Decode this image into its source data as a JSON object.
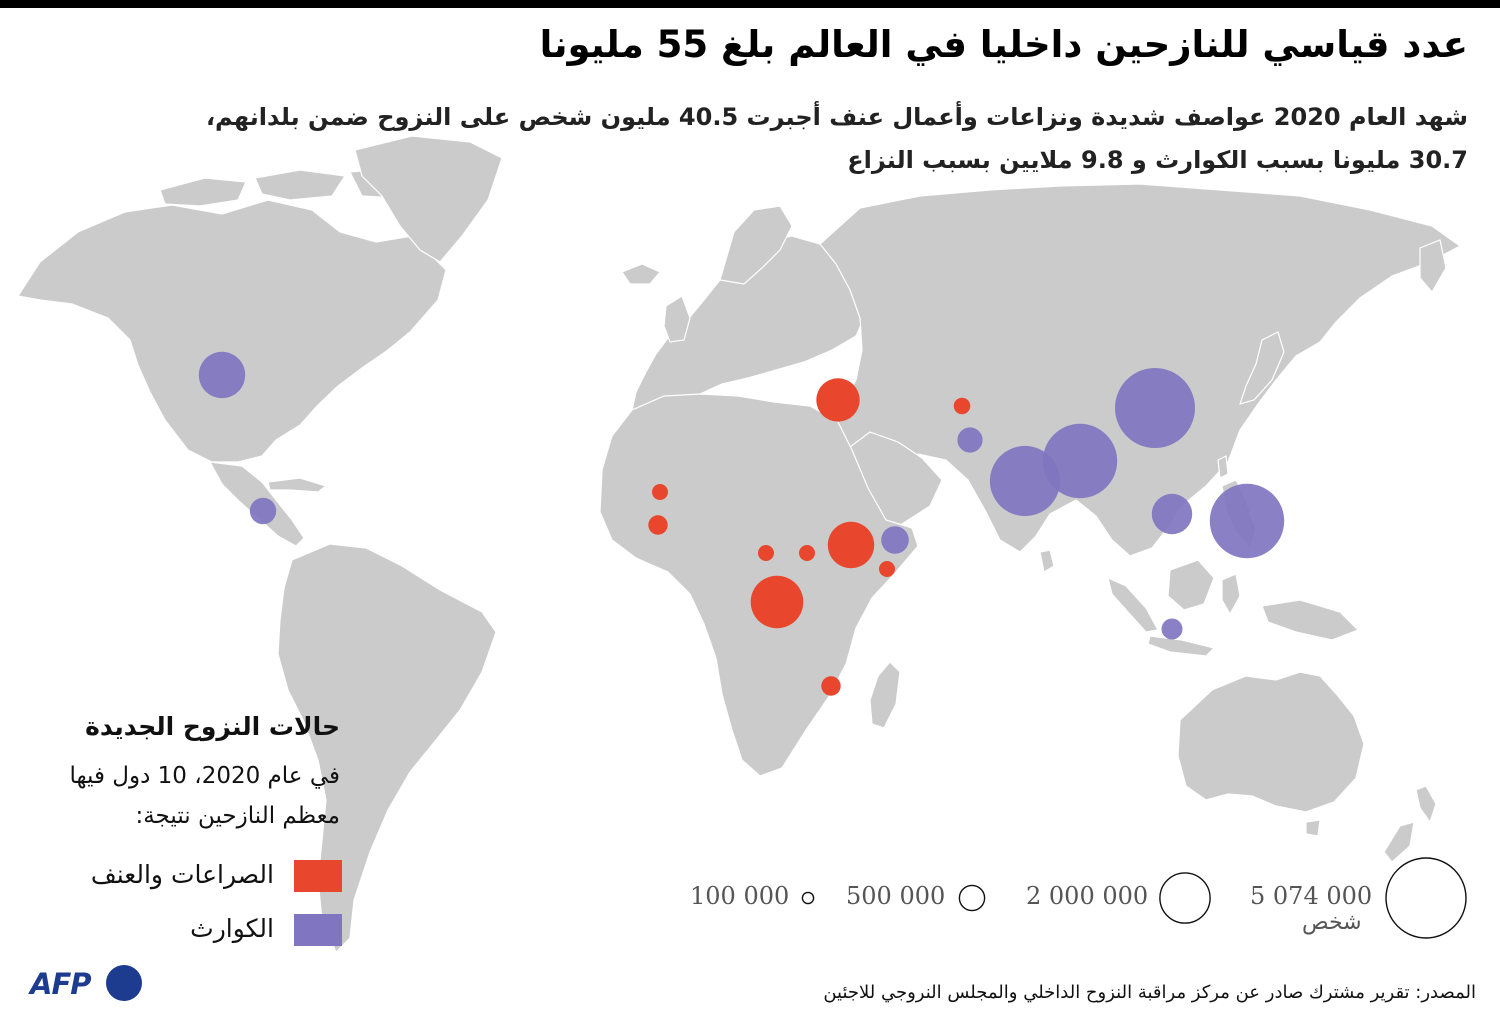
{
  "header": {
    "title": "عدد قياسي للنازحين داخليا في العالم بلغ 55 مليونا",
    "subtitle_line1": "شهد العام 2020 عواصف شديدة ونزاعات وأعمال عنف أجبرت 40.5 مليون شخص على النزوح ضمن بلدانهم،",
    "subtitle_line2": "30.7 مليونا بسبب الكوارث و 9.8 ملايين بسبب النزاع"
  },
  "colors": {
    "conflict": "#e8462d",
    "disasters": "#8075c0",
    "land": "#cbcbcb",
    "border": "#ffffff"
  },
  "legend": {
    "title": "حالات النزوح الجديدة",
    "desc_line1": "في عام 2020، 10 دول فيها",
    "desc_line2": "معظم النازحين نتيجة:",
    "conflict_label": "الصراعات والعنف",
    "disasters_label": "الكوارث"
  },
  "size_legend": {
    "items": [
      {
        "label": "100 000",
        "value": 100000
      },
      {
        "label": "500 000",
        "value": 500000
      },
      {
        "label": "2 000 000",
        "value": 2000000
      },
      {
        "label": "5 074 000",
        "value": 5074000
      }
    ],
    "unit": "شخص"
  },
  "bubbles": [
    {
      "region": "usa",
      "type": "disasters",
      "value": 1700000
    },
    {
      "region": "central-america",
      "type": "disasters",
      "value": 550000
    },
    {
      "region": "syria",
      "type": "conflict",
      "value": 1500000
    },
    {
      "region": "afghanistan",
      "type": "conflict",
      "value": 220000
    },
    {
      "region": "pakistan",
      "type": "disasters",
      "value": 500000
    },
    {
      "region": "india",
      "type": "disasters",
      "value": 3900000
    },
    {
      "region": "bangladesh",
      "type": "disasters",
      "value": 4400000
    },
    {
      "region": "china",
      "type": "disasters",
      "value": 5074000
    },
    {
      "region": "vietnam",
      "type": "disasters",
      "value": 1300000
    },
    {
      "region": "philippines",
      "type": "disasters",
      "value": 4400000
    },
    {
      "region": "indonesia",
      "type": "disasters",
      "value": 350000
    },
    {
      "region": "mali",
      "type": "conflict",
      "value": 170000
    },
    {
      "region": "burkina-faso",
      "type": "conflict",
      "value": 300000
    },
    {
      "region": "ethiopia",
      "type": "conflict",
      "value": 1700000
    },
    {
      "region": "somalia",
      "type": "disasters",
      "value": 600000
    },
    {
      "region": "somalia-south",
      "type": "conflict",
      "value": 150000
    },
    {
      "region": "central-african-republic",
      "type": "conflict",
      "value": 200000
    },
    {
      "region": "south-sudan",
      "type": "conflict",
      "value": 160000
    },
    {
      "region": "dr-congo",
      "type": "conflict",
      "value": 2200000
    },
    {
      "region": "mozambique",
      "type": "conflict",
      "value": 300000
    }
  ],
  "footer": {
    "brand": "AFP",
    "source": "المصدر: تقرير مشترك صادر عن مركز مراقبة النزوح الداخلي والمجلس النروجي للاجئين"
  }
}
